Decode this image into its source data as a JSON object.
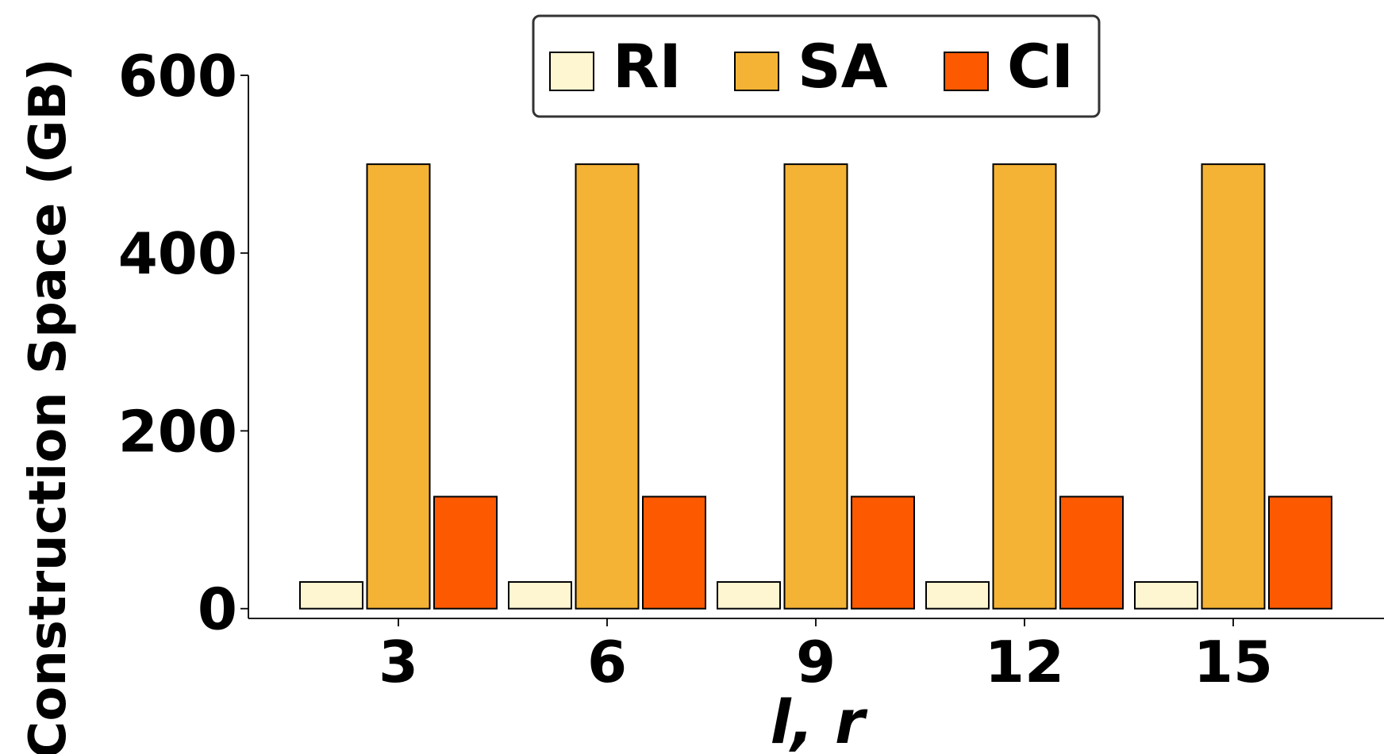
{
  "chart_data": {
    "type": "bar",
    "categories": [
      "3",
      "6",
      "9",
      "12",
      "15"
    ],
    "series": [
      {
        "name": "RI",
        "color": "#FEF6D1",
        "values": [
          30,
          30,
          30,
          30,
          30
        ]
      },
      {
        "name": "SA",
        "color": "#F5B335",
        "values": [
          500,
          500,
          500,
          500,
          500
        ]
      },
      {
        "name": "CI",
        "color": "#FC5901",
        "values": [
          126,
          126,
          126,
          126,
          126
        ]
      }
    ],
    "title": "",
    "xlabel": "l, r",
    "ylabel": "Construction Space (GB)",
    "ylim": [
      -11,
      600
    ],
    "yticks": [
      "0",
      "200",
      "400",
      "600"
    ],
    "grid": false,
    "legend_position": "top-center"
  }
}
